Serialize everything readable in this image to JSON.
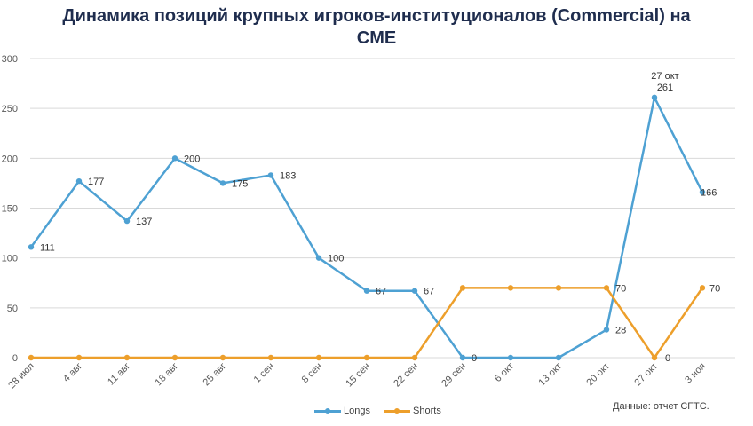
{
  "chart_data": {
    "type": "line",
    "title_line1": "Динамика позиций крупных игроков-институционалов (Commercial) на",
    "title_line2": "CME",
    "categories": [
      "28 июл",
      "4 авг",
      "11 авг",
      "18 авг",
      "25 авг",
      "1 сен",
      "8 сен",
      "15 сен",
      "22 сен",
      "29 сен",
      "6 окт",
      "13 окт",
      "20 окт",
      "27 окт",
      "3 ноя"
    ],
    "ylim": [
      0,
      300
    ],
    "yticks": [
      0,
      50,
      100,
      150,
      200,
      250,
      300
    ],
    "grid": true,
    "legend_position": "bottom",
    "series": [
      {
        "name": "Longs",
        "color": "#4ea1d3",
        "values": [
          111,
          177,
          137,
          200,
          175,
          183,
          100,
          67,
          67,
          0,
          0,
          0,
          28,
          261,
          166
        ],
        "labels": [
          "111",
          "177",
          "137",
          "200",
          "175",
          "183",
          "100",
          "67",
          "67",
          "0",
          "",
          "",
          "28",
          "261",
          "166"
        ]
      },
      {
        "name": "Shorts",
        "color": "#ed9f2b",
        "values": [
          0,
          0,
          0,
          0,
          0,
          0,
          0,
          0,
          0,
          70,
          70,
          70,
          70,
          0,
          70
        ],
        "labels": [
          "",
          "",
          "",
          "",
          "",
          "",
          "",
          "",
          "",
          "",
          "",
          "",
          "70",
          "0",
          "70"
        ]
      }
    ],
    "annotation": {
      "category_index": 13,
      "text": "27 окт"
    },
    "source_note": "Данные: отчет CFTC."
  }
}
